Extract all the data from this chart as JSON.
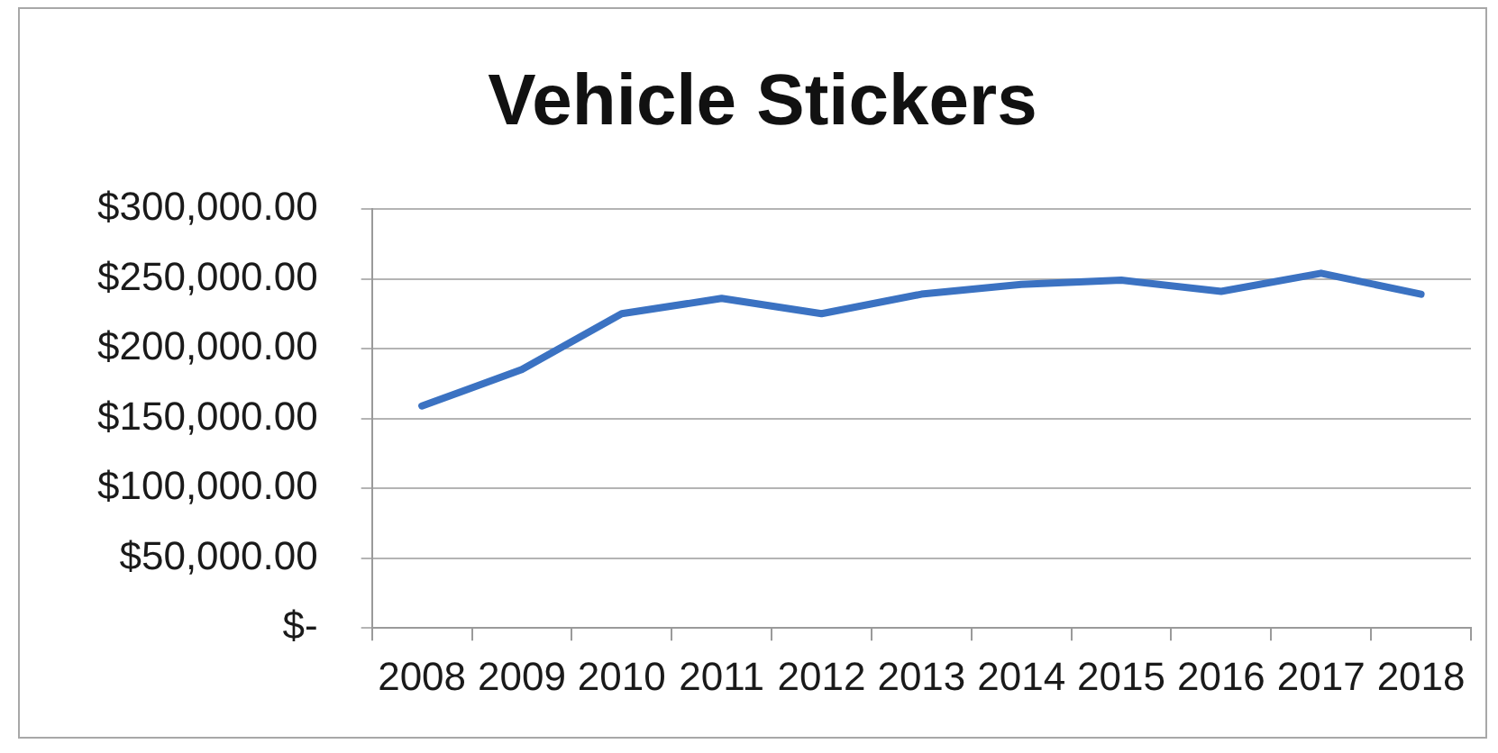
{
  "chart_data": {
    "type": "line",
    "title": "Vehicle Stickers",
    "categories": [
      "2008",
      "2009",
      "2010",
      "2011",
      "2012",
      "2013",
      "2014",
      "2015",
      "2016",
      "2017",
      "2018"
    ],
    "series": [
      {
        "color": "#3b72c2",
        "values": [
          159000,
          185000,
          225000,
          236000,
          225000,
          239000,
          246000,
          249000,
          241000,
          254000,
          239000
        ]
      }
    ],
    "ylim": [
      0,
      300000
    ],
    "yticks": [
      {
        "value": 0,
        "label": "$-"
      },
      {
        "value": 50000,
        "label": "$50,000.00"
      },
      {
        "value": 100000,
        "label": "$100,000.00"
      },
      {
        "value": 150000,
        "label": "$150,000.00"
      },
      {
        "value": 200000,
        "label": "$200,000.00"
      },
      {
        "value": 250000,
        "label": "$250,000.00"
      },
      {
        "value": 300000,
        "label": "$300,000.00"
      }
    ],
    "grid": "y"
  }
}
